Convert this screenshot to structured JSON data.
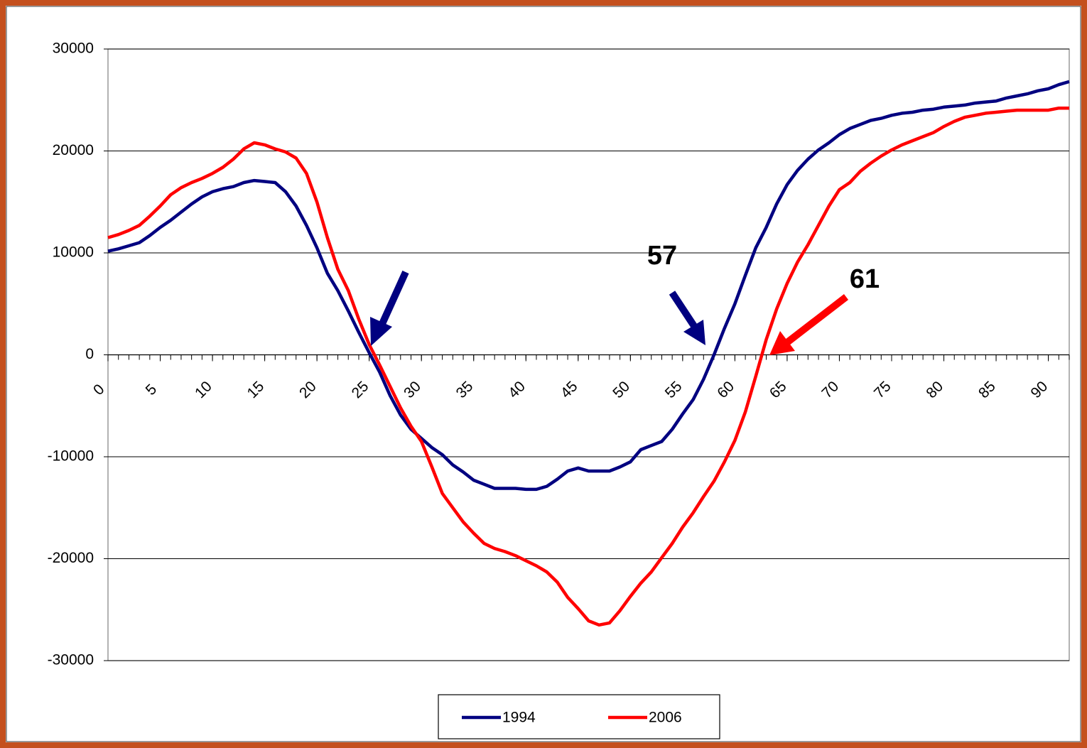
{
  "chart_data": {
    "type": "line",
    "x": [
      0,
      1,
      2,
      3,
      4,
      5,
      6,
      7,
      8,
      9,
      10,
      11,
      12,
      13,
      14,
      15,
      16,
      17,
      18,
      19,
      20,
      21,
      22,
      23,
      24,
      25,
      26,
      27,
      28,
      29,
      30,
      31,
      32,
      33,
      34,
      35,
      36,
      37,
      38,
      39,
      40,
      41,
      42,
      43,
      44,
      45,
      46,
      47,
      48,
      49,
      50,
      51,
      52,
      53,
      54,
      55,
      56,
      57,
      58,
      59,
      60,
      61,
      62,
      63,
      64,
      65,
      66,
      67,
      68,
      69,
      70,
      71,
      72,
      73,
      74,
      75,
      76,
      77,
      78,
      79,
      80,
      81,
      82,
      83,
      84,
      85,
      86,
      87,
      88,
      89,
      90,
      91,
      92
    ],
    "series": [
      {
        "name": "1994",
        "color": "#000080",
        "values": [
          10170,
          10400,
          10700,
          11000,
          11700,
          12500,
          13200,
          14000,
          14800,
          15500,
          16000,
          16300,
          16500,
          16900,
          17100,
          17000,
          16900,
          16000,
          14600,
          12700,
          10500,
          8000,
          6300,
          4300,
          2200,
          200,
          -1700,
          -4000,
          -5900,
          -7300,
          -8200,
          -9100,
          -9800,
          -10800,
          -11500,
          -12300,
          -12700,
          -13100,
          -13100,
          -13100,
          -13200,
          -13200,
          -12900,
          -12200,
          -11400,
          -11100,
          -11400,
          -11400,
          -11400,
          -11000,
          -10500,
          -9300,
          -8900,
          -8500,
          -7300,
          -5800,
          -4400,
          -2400,
          0,
          2600,
          5000,
          7800,
          10500,
          12500,
          14800,
          16700,
          18100,
          19200,
          20100,
          20800,
          21600,
          22200,
          22600,
          23000,
          23200,
          23500,
          23700,
          23800,
          24000,
          24100,
          24300,
          24400,
          24500,
          24700,
          24800,
          24900,
          25200,
          25400,
          25600,
          25900,
          26100,
          26500,
          26800
        ]
      },
      {
        "name": "2006",
        "color": "#ff0000",
        "values": [
          11500,
          11800,
          12200,
          12700,
          13600,
          14600,
          15700,
          16400,
          16900,
          17300,
          17800,
          18400,
          19200,
          20200,
          20800,
          20600,
          20200,
          19900,
          19300,
          17800,
          15000,
          11500,
          8400,
          6300,
          3500,
          1000,
          -1000,
          -3100,
          -5200,
          -7000,
          -8500,
          -11000,
          -13600,
          -15000,
          -16400,
          -17500,
          -18500,
          -19000,
          -19300,
          -19700,
          -20200,
          -20700,
          -21300,
          -22300,
          -23800,
          -24900,
          -26100,
          -26500,
          -26300,
          -25100,
          -23700,
          -22400,
          -21300,
          -19900,
          -18500,
          -16900,
          -15500,
          -13900,
          -12400,
          -10500,
          -8400,
          -5600,
          -2100,
          1500,
          4500,
          7000,
          9100,
          10800,
          12700,
          14600,
          16200,
          16900,
          18000,
          18800,
          19500,
          20100,
          20600,
          21000,
          21400,
          21800,
          22400,
          22900,
          23300,
          23500,
          23700,
          23800,
          23900,
          24000,
          24000,
          24000,
          24000,
          24200,
          24200
        ]
      }
    ],
    "xlim": [
      0,
      92
    ],
    "xticks": [
      0,
      5,
      10,
      15,
      20,
      25,
      30,
      35,
      40,
      45,
      50,
      55,
      60,
      65,
      70,
      75,
      80,
      85,
      90
    ],
    "ylim": [
      -30000,
      30000
    ],
    "yticks": [
      -30000,
      -20000,
      -10000,
      0,
      10000,
      20000,
      30000
    ],
    "grid": true,
    "legend": "bottom",
    "annotations": [
      {
        "text": "57",
        "color": "#000080"
      },
      {
        "text": "61",
        "color": "#ff0000"
      }
    ]
  }
}
